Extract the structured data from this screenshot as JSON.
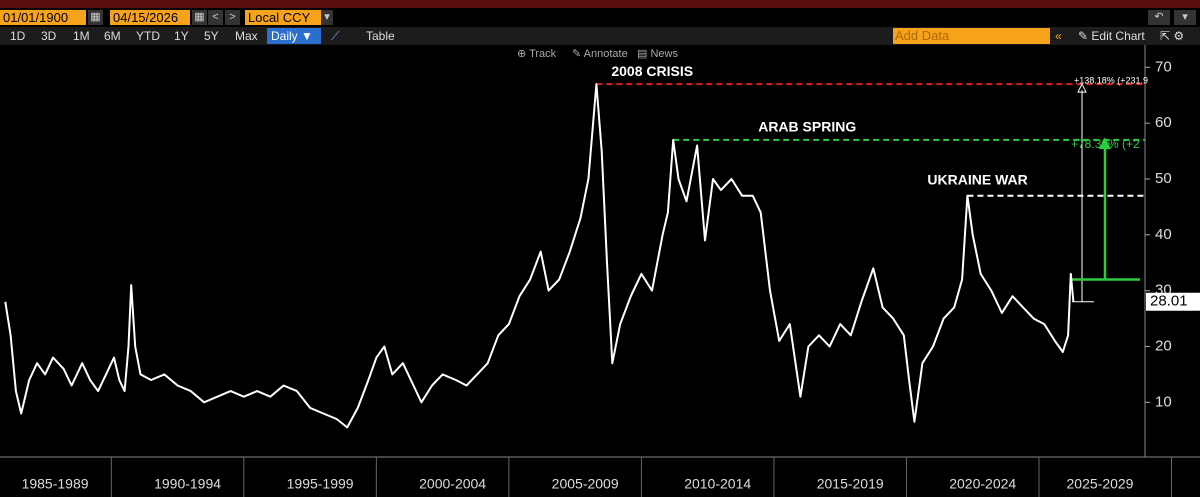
{
  "toolbar": {
    "start_date": "01/01/1900",
    "end_date": "04/15/2026",
    "currency": "Local CCY",
    "periods": [
      "1D",
      "3D",
      "1M",
      "6M",
      "YTD",
      "1Y",
      "5Y",
      "Max"
    ],
    "frequency": "Daily",
    "table": "Table",
    "add_data": "Add Data",
    "edit_chart": "Edit Chart",
    "tools": [
      "Track",
      "Annotate",
      "News"
    ]
  },
  "chart_data": {
    "type": "line",
    "series": [
      {
        "color": "#ffffff",
        "x": [
          1986.0,
          1986.2,
          1986.4,
          1986.6,
          1986.9,
          1987.2,
          1987.5,
          1987.8,
          1988.2,
          1988.5,
          1988.9,
          1989.2,
          1989.5,
          1989.8,
          1990.1,
          1990.3,
          1990.5,
          1990.65,
          1990.75,
          1990.9,
          1991.1,
          1991.5,
          1992.0,
          1992.5,
          1993.0,
          1993.5,
          1994.0,
          1994.5,
          1995.0,
          1995.5,
          1996.0,
          1996.5,
          1997.0,
          1997.5,
          1998.0,
          1998.5,
          1998.9,
          1999.3,
          1999.7,
          2000.0,
          2000.3,
          2000.6,
          2001.0,
          2001.4,
          2001.7,
          2002.1,
          2002.5,
          2003.0,
          2003.4,
          2003.8,
          2004.2,
          2004.6,
          2005.0,
          2005.4,
          2005.8,
          2006.2,
          2006.5,
          2006.9,
          2007.3,
          2007.7,
          2008.0,
          2008.3,
          2008.5,
          2008.7,
          2008.9,
          2009.2,
          2009.6,
          2010.0,
          2010.4,
          2010.8,
          2011.0,
          2011.2,
          2011.4,
          2011.7,
          2012.1,
          2012.4,
          2012.7,
          2013.0,
          2013.4,
          2013.8,
          2014.2,
          2014.5,
          2014.85,
          2015.2,
          2015.6,
          2016.0,
          2016.3,
          2016.7,
          2017.1,
          2017.5,
          2017.9,
          2018.3,
          2018.75,
          2019.1,
          2019.5,
          2019.9,
          2020.1,
          2020.3,
          2020.6,
          2021.0,
          2021.4,
          2021.8,
          2022.1,
          2022.3,
          2022.5,
          2022.8,
          2023.2,
          2023.6,
          2024.0,
          2024.4,
          2024.8,
          2025.2,
          2025.6,
          2025.9,
          2026.1,
          2026.2,
          2026.3
        ],
        "values": [
          28,
          22,
          12,
          8,
          14,
          17,
          15,
          18,
          16,
          13,
          17,
          14,
          12,
          15,
          18,
          14,
          12,
          20,
          31,
          20,
          15,
          14,
          15,
          13,
          12,
          10,
          11,
          12,
          11,
          12,
          11,
          13,
          12,
          9,
          8,
          7,
          5.5,
          9,
          14,
          18,
          20,
          15,
          17,
          13,
          10,
          13,
          15,
          14,
          13,
          15,
          17,
          22,
          24,
          29,
          32,
          37,
          30,
          32,
          37,
          43,
          50,
          67,
          55,
          35,
          17,
          24,
          29,
          33,
          30,
          40,
          44,
          57,
          50,
          46,
          56,
          39,
          50,
          48,
          50,
          47,
          47,
          44,
          30,
          21,
          24,
          11,
          20,
          22,
          20,
          24,
          22,
          28,
          34,
          27,
          25,
          22,
          14,
          6.5,
          17,
          20,
          25,
          27,
          32,
          47,
          40,
          33,
          30,
          26,
          29,
          27,
          25,
          24,
          21,
          19,
          22,
          33,
          28.01
        ]
      }
    ],
    "xlim": [
      1985.8,
      2029.0
    ],
    "xticks": [
      {
        "value": 1987.5,
        "label": "1985-1989"
      },
      {
        "value": 1992.5,
        "label": "1990-1994"
      },
      {
        "value": 1997.5,
        "label": "1995-1999"
      },
      {
        "value": 2002.5,
        "label": "2000-2004"
      },
      {
        "value": 2007.5,
        "label": "2005-2009"
      },
      {
        "value": 2012.5,
        "label": "2010-2014"
      },
      {
        "value": 2017.5,
        "label": "2015-2019"
      },
      {
        "value": 2022.5,
        "label": "2020-2024"
      },
      {
        "value": 2027.5,
        "label": "2025-2029"
      }
    ],
    "ylim": [
      0.2,
      74
    ],
    "yticks": [
      10,
      20,
      30,
      40,
      50,
      60,
      70
    ],
    "grid": false,
    "annotations": [
      {
        "text": "2008 CRISIS",
        "x": 2008.3,
        "value": 67,
        "color": "#e02020"
      },
      {
        "text": "ARAB SPRING",
        "x": 2011.2,
        "value": 57,
        "color": "#2ecc40"
      },
      {
        "text": "UKRAINE WAR",
        "x": 2022.3,
        "value": 47,
        "color": "#ffffff"
      }
    ],
    "measurements": [
      {
        "label": "+138.18% (+231.9",
        "from": 28,
        "to": 67,
        "color": "#ffffff"
      },
      {
        "label": "+78.30% (+2",
        "from": 32,
        "to": 57,
        "color": "#2ecc40"
      }
    ]
  }
}
